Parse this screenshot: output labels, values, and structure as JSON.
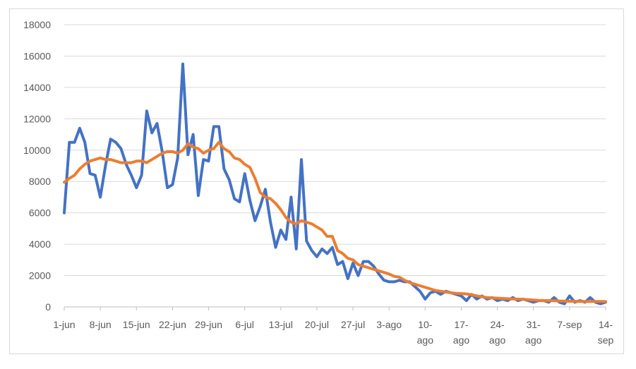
{
  "chart_data": {
    "type": "line",
    "title": "",
    "xlabel": "",
    "ylabel": "",
    "ylim": [
      0,
      18000
    ],
    "y_ticks": [
      0,
      2000,
      4000,
      6000,
      8000,
      10000,
      12000,
      14000,
      16000,
      18000
    ],
    "grid": true,
    "legend": "none",
    "x_tick_labels": [
      [
        "1-jun"
      ],
      [
        "8-jun"
      ],
      [
        "15-jun"
      ],
      [
        "22-jun"
      ],
      [
        "29-jun"
      ],
      [
        "6-jul"
      ],
      [
        "13-jul"
      ],
      [
        "20-jul"
      ],
      [
        "27-jul"
      ],
      [
        "3-ago"
      ],
      [
        "10-",
        "ago"
      ],
      [
        "17-",
        "ago"
      ],
      [
        "24-",
        "ago"
      ],
      [
        "31-",
        "ago"
      ],
      [
        "7-sep"
      ],
      [
        "14-",
        "sep"
      ]
    ],
    "x_tick_day_index": [
      0,
      7,
      14,
      21,
      28,
      35,
      42,
      49,
      56,
      63,
      70,
      77,
      84,
      91,
      98,
      105
    ],
    "series": [
      {
        "color": "#4472c4",
        "values": [
          6000,
          10500,
          10500,
          11400,
          10500,
          8500,
          8400,
          7000,
          9000,
          10700,
          10500,
          10100,
          9100,
          8400,
          7600,
          8400,
          12500,
          11100,
          11700,
          9900,
          7600,
          7800,
          9500,
          15500,
          9700,
          11000,
          7100,
          9400,
          9300,
          11500,
          11500,
          8800,
          8100,
          6900,
          6700,
          8500,
          6800,
          5500,
          6400,
          7500,
          5400,
          3800,
          4900,
          4300,
          7000,
          3700,
          9400,
          4200,
          3600,
          3200,
          3700,
          3400,
          3800,
          2700,
          2900,
          1800,
          2800,
          2000,
          2900,
          2900,
          2600,
          2100,
          1700,
          1600,
          1600,
          1700,
          1600,
          1600,
          1300,
          1000,
          500,
          900,
          1000,
          800,
          1000,
          900,
          800,
          700,
          400,
          800,
          500,
          700,
          500,
          600,
          400,
          500,
          400,
          600,
          400,
          500,
          400,
          300,
          400,
          400,
          300,
          600,
          300,
          200,
          700,
          300,
          400,
          300,
          600,
          300,
          200,
          300
        ]
      },
      {
        "color": "#ed7d31",
        "values": [
          7950,
          8200,
          8400,
          8800,
          9100,
          9300,
          9400,
          9500,
          9400,
          9400,
          9300,
          9200,
          9200,
          9200,
          9300,
          9300,
          9200,
          9400,
          9600,
          9800,
          9900,
          9900,
          9800,
          10000,
          10400,
          10200,
          10100,
          9800,
          10000,
          10100,
          10500,
          10100,
          9900,
          9500,
          9400,
          9100,
          8900,
          8200,
          7300,
          7000,
          6900,
          6600,
          6200,
          5700,
          5400,
          5300,
          5500,
          5400,
          5300,
          5100,
          4900,
          4500,
          4500,
          3600,
          3400,
          3100,
          3000,
          2700,
          2600,
          2500,
          2400,
          2300,
          2200,
          2100,
          1950,
          1900,
          1700,
          1550,
          1450,
          1350,
          1250,
          1150,
          1050,
          1000,
          950,
          900,
          870,
          850,
          830,
          780,
          700,
          650,
          600,
          580,
          560,
          540,
          520,
          510,
          500,
          480,
          460,
          440,
          420,
          410,
          400,
          390,
          380,
          370,
          360,
          360,
          350,
          350,
          350,
          350,
          350,
          340
        ]
      }
    ]
  }
}
